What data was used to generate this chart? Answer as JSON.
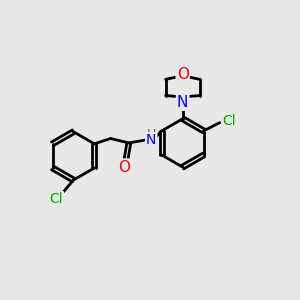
{
  "background_color": "#e8e8e8",
  "bond_color": "#000000",
  "atom_colors": {
    "Cl": "#00aa00",
    "O": "#ff0000",
    "N": "#0000ff",
    "H": "#555555",
    "C": "#000000"
  },
  "figsize": [
    3.0,
    3.0
  ],
  "dpi": 100
}
